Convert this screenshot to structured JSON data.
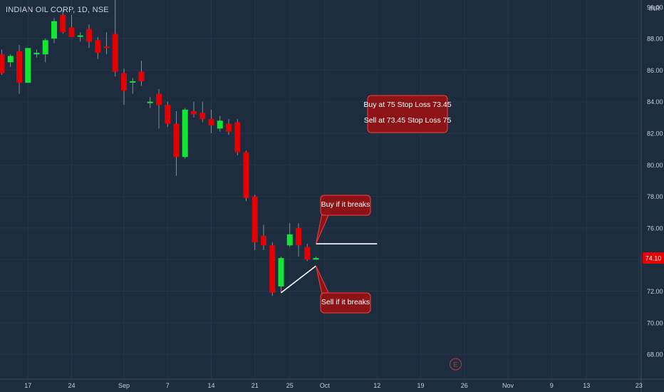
{
  "chart_data": {
    "type": "candlestick",
    "title": "INDIAN OIL CORP, 1D, NSE",
    "currency": "INR",
    "ylim": [
      67,
      90
    ],
    "y_ticks": [
      68,
      70,
      72,
      74,
      76,
      78,
      80,
      82,
      84,
      86,
      88
    ],
    "y_tick_labels": [
      "68.00",
      "70.00",
      "72.00",
      "74.00",
      "76.00",
      "78.00",
      "80.00",
      "82.00",
      "84.00",
      "86.00",
      "88.00"
    ],
    "partial_top_label": "90.00",
    "x_ticks": [
      {
        "label": "17",
        "index": 3
      },
      {
        "label": "24",
        "index": 8
      },
      {
        "label": "Sep",
        "index": 14
      },
      {
        "label": "7",
        "index": 19
      },
      {
        "label": "14",
        "index": 24
      },
      {
        "label": "21",
        "index": 29
      },
      {
        "label": "25",
        "index": 33
      },
      {
        "label": "Oct",
        "index": 37
      },
      {
        "label": "12",
        "index": 43
      },
      {
        "label": "19",
        "index": 48
      },
      {
        "label": "26",
        "index": 53
      },
      {
        "label": "Nov",
        "index": 58
      },
      {
        "label": "9",
        "index": 63
      },
      {
        "label": "13",
        "index": 67
      },
      {
        "label": "23",
        "index": 73
      }
    ],
    "candles": [
      {
        "o": 87.0,
        "h": 87.3,
        "l": 85.7,
        "c": 85.8
      },
      {
        "o": 86.5,
        "h": 87.0,
        "l": 86.2,
        "c": 86.9
      },
      {
        "o": 87.2,
        "h": 87.6,
        "l": 84.5,
        "c": 85.2
      },
      {
        "o": 85.2,
        "h": 87.4,
        "l": 85.2,
        "c": 87.4
      },
      {
        "o": 87.0,
        "h": 87.3,
        "l": 86.8,
        "c": 87.1
      },
      {
        "o": 87.0,
        "h": 88.0,
        "l": 86.5,
        "c": 87.9
      },
      {
        "o": 88.0,
        "h": 89.3,
        "l": 87.7,
        "c": 89.1
      },
      {
        "o": 89.5,
        "h": 89.8,
        "l": 88.3,
        "c": 88.4
      },
      {
        "o": 88.7,
        "h": 89.5,
        "l": 88.3,
        "c": 88.1
      },
      {
        "o": 88.2,
        "h": 88.4,
        "l": 87.8,
        "c": 88.2
      },
      {
        "o": 88.6,
        "h": 88.9,
        "l": 87.4,
        "c": 87.8
      },
      {
        "o": 87.9,
        "h": 88.1,
        "l": 86.7,
        "c": 87.1
      },
      {
        "o": 87.5,
        "h": 88.4,
        "l": 87.0,
        "c": 87.4
      },
      {
        "o": 88.3,
        "h": 90.5,
        "l": 85.6,
        "c": 85.9
      },
      {
        "o": 85.8,
        "h": 86.1,
        "l": 83.8,
        "c": 84.7
      },
      {
        "o": 85.3,
        "h": 85.5,
        "l": 84.5,
        "c": 85.3
      },
      {
        "o": 85.9,
        "h": 86.6,
        "l": 85.0,
        "c": 85.3
      },
      {
        "o": 84.0,
        "h": 84.3,
        "l": 83.6,
        "c": 84.0
      },
      {
        "o": 84.5,
        "h": 84.8,
        "l": 82.3,
        "c": 83.8
      },
      {
        "o": 83.8,
        "h": 84.0,
        "l": 82.4,
        "c": 82.6
      },
      {
        "o": 82.6,
        "h": 83.4,
        "l": 79.3,
        "c": 80.5
      },
      {
        "o": 80.5,
        "h": 83.6,
        "l": 80.4,
        "c": 83.5
      },
      {
        "o": 83.4,
        "h": 84.0,
        "l": 83.0,
        "c": 83.2
      },
      {
        "o": 83.3,
        "h": 84.0,
        "l": 82.7,
        "c": 82.9
      },
      {
        "o": 82.9,
        "h": 83.5,
        "l": 82.0,
        "c": 82.5
      },
      {
        "o": 82.3,
        "h": 83.1,
        "l": 82.1,
        "c": 82.8
      },
      {
        "o": 82.6,
        "h": 82.9,
        "l": 81.9,
        "c": 82.1
      },
      {
        "o": 82.7,
        "h": 82.9,
        "l": 80.6,
        "c": 80.8
      },
      {
        "o": 80.8,
        "h": 80.9,
        "l": 77.7,
        "c": 77.9
      },
      {
        "o": 78.0,
        "h": 78.1,
        "l": 74.6,
        "c": 75.1
      },
      {
        "o": 75.5,
        "h": 76.2,
        "l": 74.6,
        "c": 74.9
      },
      {
        "o": 74.9,
        "h": 75.1,
        "l": 71.7,
        "c": 71.9
      },
      {
        "o": 72.3,
        "h": 74.2,
        "l": 71.9,
        "c": 74.1
      },
      {
        "o": 74.9,
        "h": 76.3,
        "l": 74.8,
        "c": 75.6
      },
      {
        "o": 76.0,
        "h": 76.3,
        "l": 74.2,
        "c": 74.9
      },
      {
        "o": 74.8,
        "h": 75.0,
        "l": 73.9,
        "c": 74.0
      },
      {
        "o": 74.0,
        "h": 74.2,
        "l": 74.0,
        "c": 74.1
      }
    ],
    "current_price_label": "74.10",
    "current_price": 74.1,
    "annotations": {
      "box_main": [
        "Buy at 75 Stop Loss 73.45",
        "Sell at 73.45 Stop Loss 75"
      ],
      "buy_callout": "Buy if it breaks",
      "sell_callout": "Sell if it breaks"
    },
    "lines": {
      "resistance": {
        "value": 75.0,
        "from_index": 36,
        "to_index": 43
      },
      "support": {
        "from": {
          "index": 32,
          "value": 71.9
        },
        "to": {
          "index": 36,
          "value": 73.6
        }
      }
    },
    "event_marker": {
      "label": "E",
      "index": 52
    }
  },
  "colors": {
    "background": "#1e2c3f",
    "up": "#12e632",
    "down": "#e40000",
    "grid": "#27364a",
    "axis_text": "#c7d0db",
    "callout_fill": "#8c1417",
    "callout_border": "#ff3b3b",
    "price_label_bg": "#e40000"
  }
}
